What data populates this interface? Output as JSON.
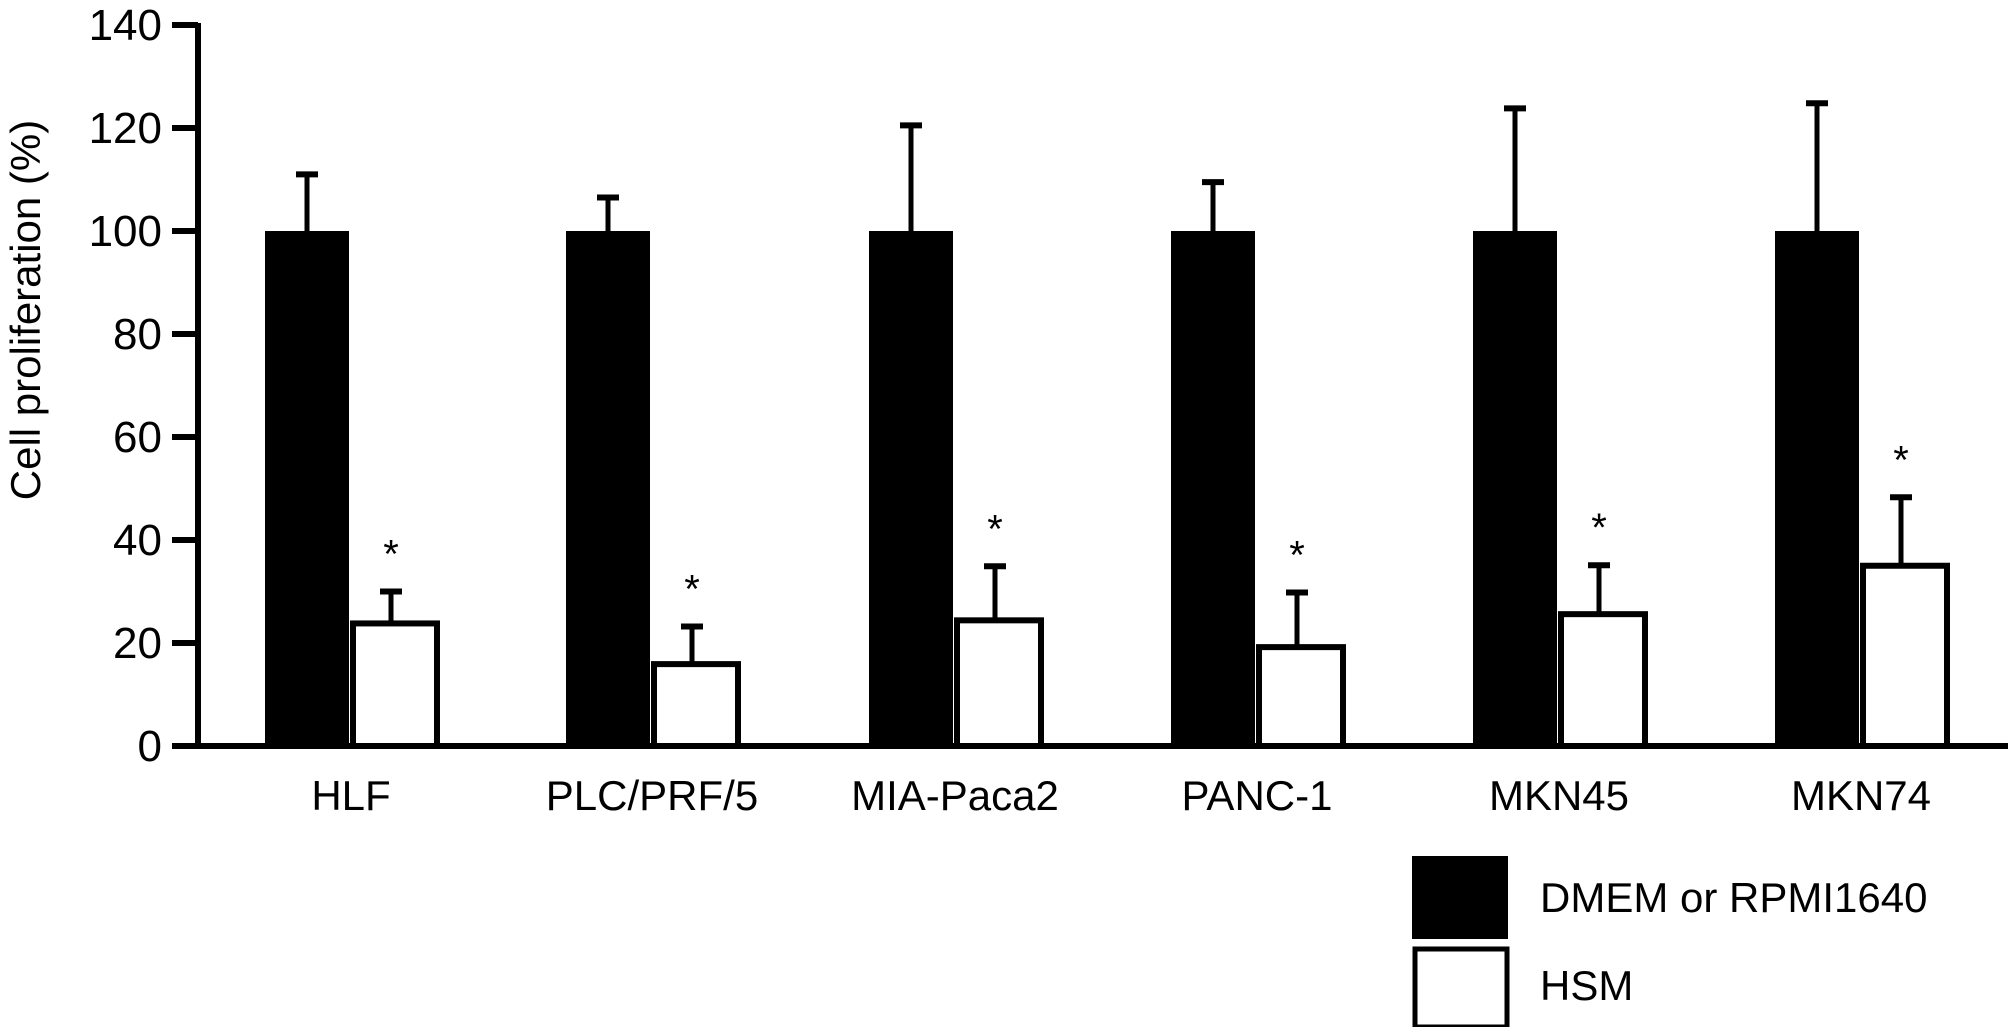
{
  "chart_data": {
    "type": "bar",
    "title": "",
    "xlabel": "",
    "ylabel": "Cell proliferation (%)",
    "ylim": [
      0,
      140
    ],
    "yticks": [
      0,
      20,
      40,
      60,
      80,
      100,
      120,
      140
    ],
    "grid": false,
    "legend_position": "bottom-right",
    "categories": [
      "HLF",
      "PLC/PRF/5",
      "MIA-Paca2",
      "PANC-1",
      "MKN45",
      "MKN74"
    ],
    "series": [
      {
        "name": "DMEM or RPMI1640",
        "color": "#000000",
        "values": [
          100,
          100,
          100,
          100,
          100,
          100
        ],
        "error": [
          11,
          6.5,
          20.5,
          9.5,
          23.8,
          24.8
        ]
      },
      {
        "name": "HSM",
        "color": "#ffffff",
        "values": [
          23.8,
          15.9,
          24.4,
          19.2,
          25.6,
          35.0
        ],
        "error": [
          6.2,
          7.3,
          10.5,
          10.6,
          9.5,
          13.3
        ]
      }
    ],
    "annotations": [
      {
        "category": "HLF",
        "series": "HSM",
        "text": "*"
      },
      {
        "category": "PLC/PRF/5",
        "series": "HSM",
        "text": "*"
      },
      {
        "category": "MIA-Paca2",
        "series": "HSM",
        "text": "*"
      },
      {
        "category": "PANC-1",
        "series": "HSM",
        "text": "*"
      },
      {
        "category": "MKN45",
        "series": "HSM",
        "text": "*"
      },
      {
        "category": "MKN74",
        "series": "HSM",
        "text": "*"
      }
    ]
  }
}
